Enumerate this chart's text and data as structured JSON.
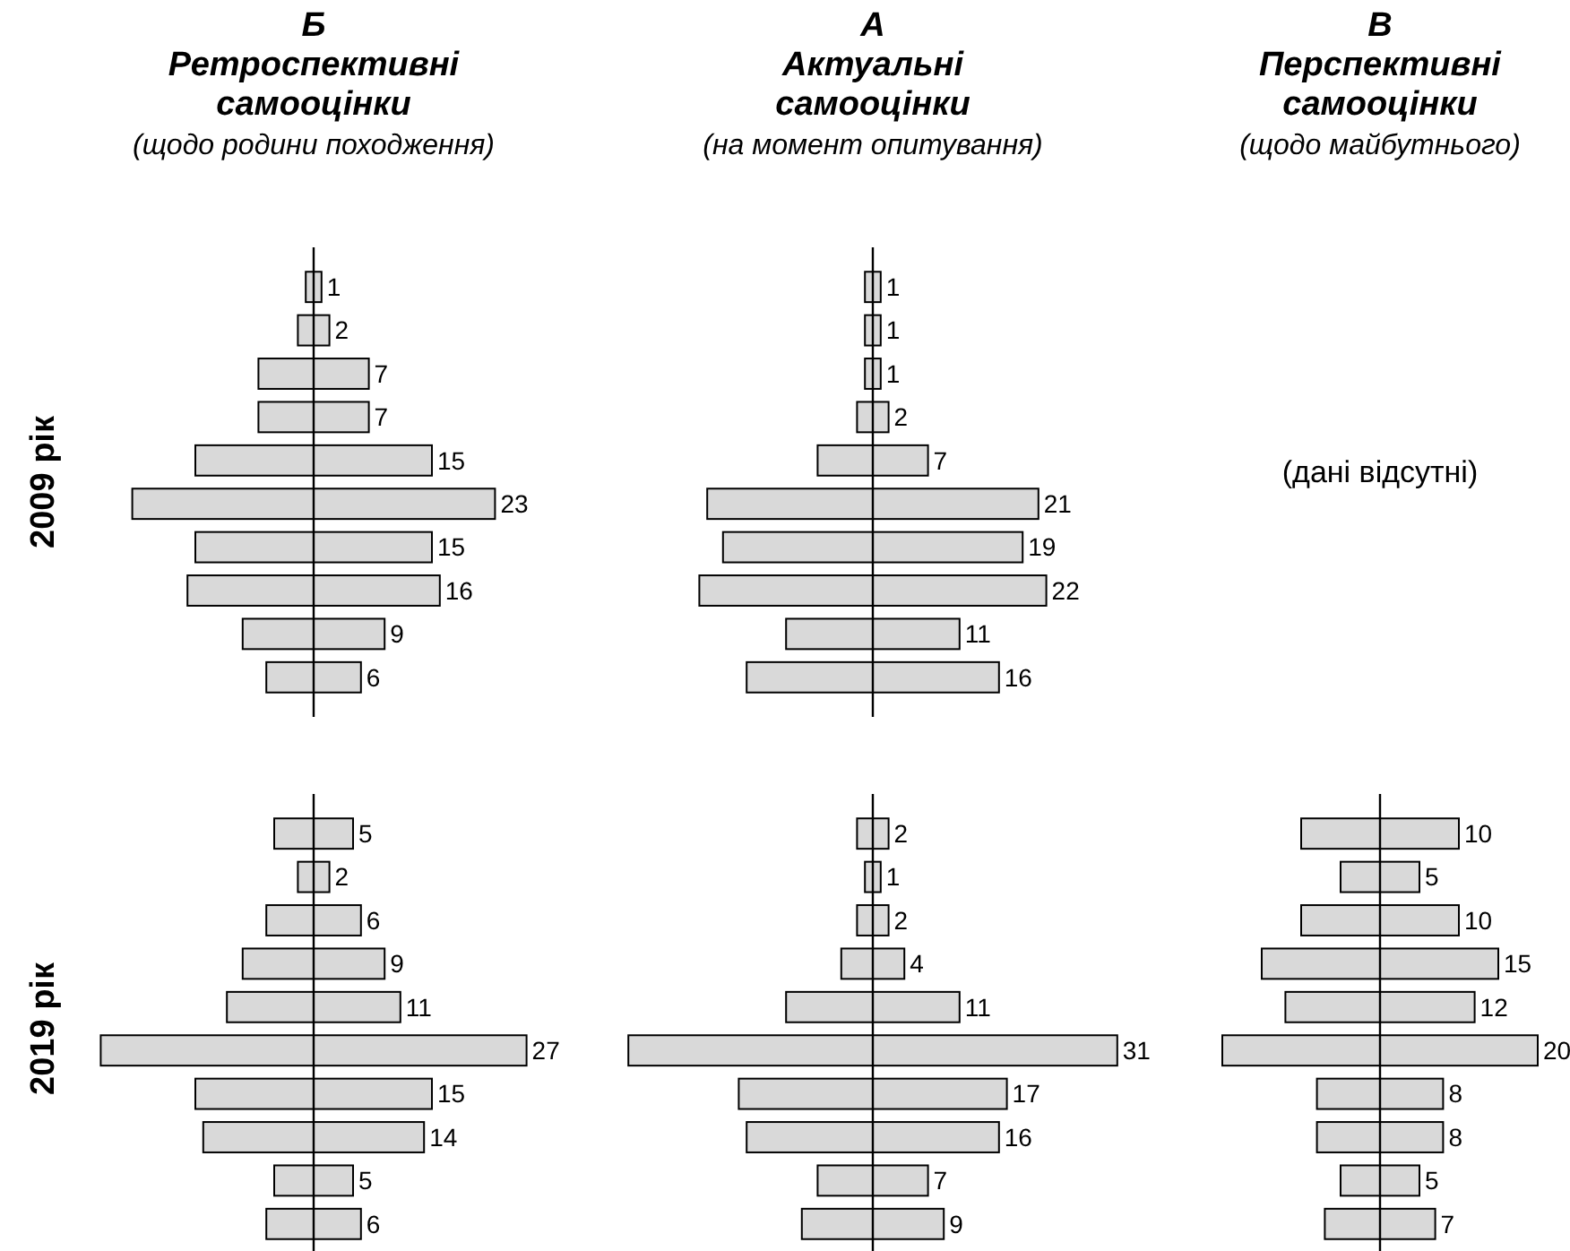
{
  "chart_data": [
    {
      "type": "other",
      "title": "Б\nРетроспективні\nсамооцінки",
      "subtitle": "(щодо родини походження)",
      "ylabel": "2009 рік",
      "categories": [
        null,
        null,
        null,
        null,
        null,
        null,
        null,
        null,
        null,
        null
      ],
      "values": [
        1,
        2,
        7,
        7,
        15,
        23,
        15,
        16,
        9,
        6
      ],
      "color": "#d9d9d9",
      "data_labels": true
    },
    {
      "type": "other",
      "title": "А\nАктуальні\nсамооцінки",
      "subtitle": "(на момент опитування)",
      "categories": [
        null,
        null,
        null,
        null,
        null,
        null,
        null,
        null,
        null,
        null
      ],
      "values": [
        1,
        1,
        1,
        2,
        7,
        21,
        19,
        22,
        11,
        16
      ],
      "color": "#d9d9d9",
      "data_labels": true
    },
    {
      "type": "other",
      "title": "В\nПерспективні\nсамооцінки",
      "subtitle": "(щодо майбутнього)",
      "annotations": [
        "(дані відсутні)"
      ]
    },
    {
      "type": "other",
      "ylabel": "2019 рік",
      "categories": [
        null,
        null,
        null,
        null,
        null,
        null,
        null,
        null,
        null,
        null
      ],
      "values": [
        5,
        2,
        6,
        9,
        11,
        27,
        15,
        14,
        5,
        6
      ],
      "color": "#d9d9d9",
      "data_labels": true
    },
    {
      "type": "other",
      "categories": [
        null,
        null,
        null,
        null,
        null,
        null,
        null,
        null,
        null,
        null
      ],
      "values": [
        2,
        1,
        2,
        4,
        11,
        31,
        17,
        16,
        7,
        9
      ],
      "color": "#d9d9d9",
      "data_labels": true
    },
    {
      "type": "other",
      "categories": [
        null,
        null,
        null,
        null,
        null,
        null,
        null,
        null,
        null,
        null
      ],
      "values": [
        10,
        5,
        10,
        15,
        12,
        20,
        8,
        8,
        5,
        7
      ],
      "color": "#d9d9d9",
      "data_labels": true
    }
  ]
}
